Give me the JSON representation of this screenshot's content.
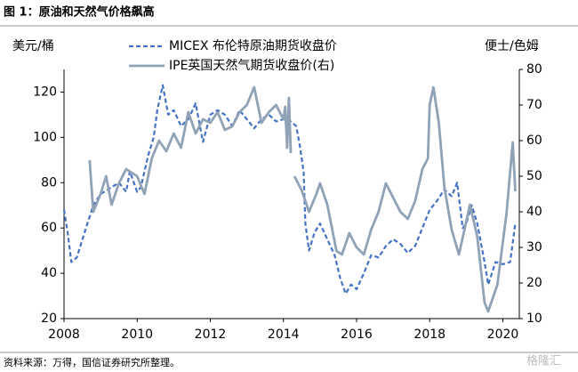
{
  "chart_data": {
    "type": "line",
    "title": "图 1：原油和天然气价格飙高",
    "y_label": "美元/桶",
    "y2_label": "便士/色姆",
    "source": "资料来源：万得，国信证券研究所整理。",
    "watermark": "格隆汇",
    "xlim": [
      2008,
      2020.45
    ],
    "xticks": [
      2008,
      2010,
      2012,
      2014,
      2016,
      2018,
      2020
    ],
    "ylim": [
      20,
      130
    ],
    "yticks": [
      20,
      40,
      60,
      80,
      100,
      120
    ],
    "y2lim": [
      10,
      80
    ],
    "y2ticks": [
      10,
      20,
      30,
      40,
      50,
      60,
      70,
      80
    ],
    "series": [
      {
        "name": "MICEX 布伦特原油期货收盘价",
        "color": "#4472c4",
        "style": "dashed",
        "x": [
          2008.0,
          2008.1,
          2008.2,
          2008.35,
          2008.6,
          2008.8,
          2009.0,
          2009.3,
          2009.5,
          2009.7,
          2009.8,
          2010.0,
          2010.1,
          2010.3,
          2010.45,
          2010.55,
          2010.7,
          2010.85,
          2011.0,
          2011.2,
          2011.4,
          2011.6,
          2011.8,
          2012.0,
          2012.2,
          2012.4,
          2012.6,
          2012.8,
          2013.0,
          2013.2,
          2013.4,
          2013.6,
          2013.8,
          2014.0,
          2014.2,
          2014.35,
          2014.45,
          2014.55,
          2014.6,
          2014.7,
          2014.85,
          2015.0,
          2015.2,
          2015.4,
          2015.55,
          2015.7,
          2015.85,
          2016.0,
          2016.2,
          2016.4,
          2016.6,
          2016.8,
          2017.0,
          2017.2,
          2017.4,
          2017.6,
          2017.8,
          2018.0,
          2018.2,
          2018.4,
          2018.6,
          2018.75,
          2018.9,
          2019.0,
          2019.15,
          2019.3,
          2019.5,
          2019.6,
          2019.8,
          2020.0,
          2020.2,
          2020.34
        ],
        "values": [
          68,
          58,
          45,
          47,
          60,
          70,
          75,
          78,
          80,
          76,
          85,
          76,
          78,
          92,
          100,
          112,
          123,
          110,
          112,
          105,
          108,
          115,
          98,
          110,
          112,
          110,
          105,
          112,
          108,
          104,
          108,
          110,
          107,
          108,
          107,
          105,
          96,
          85,
          62,
          50,
          58,
          62,
          55,
          48,
          38,
          31,
          35,
          33,
          40,
          48,
          47,
          52,
          55,
          53,
          49,
          52,
          60,
          68,
          72,
          77,
          74,
          80,
          60,
          62,
          70,
          62,
          45,
          35,
          45,
          44,
          45,
          62
        ]
      },
      {
        "name": "IPE英国天然气期货收盘价(右)",
        "color": "#8fa2b6",
        "style": "solid",
        "axis": "y2",
        "x": [
          2008.7,
          2008.8,
          2009.0,
          2009.15,
          2009.3,
          2009.5,
          2009.7,
          2010.0,
          2010.2,
          2010.4,
          2010.6,
          2010.8,
          2011.0,
          2011.2,
          2011.4,
          2011.6,
          2011.8,
          2012.0,
          2012.2,
          2012.4,
          2012.6,
          2012.8,
          2013.0,
          2013.2,
          2013.4,
          2013.6,
          2013.8,
          2014.0,
          2014.05,
          2014.1,
          2014.15,
          2014.2,
          2014.22,
          2014.3,
          2014.5,
          2014.7,
          2014.9,
          2015.0,
          2015.2,
          2015.45,
          2015.6,
          2015.8,
          2016.0,
          2016.2,
          2016.4,
          2016.6,
          2016.8,
          2017.0,
          2017.2,
          2017.4,
          2017.6,
          2017.8,
          2017.95,
          2018.0,
          2018.1,
          2018.25,
          2018.4,
          2018.6,
          2018.8,
          2019.1,
          2019.3,
          2019.5,
          2019.6,
          2019.85,
          2020.1,
          2020.27,
          2020.34
        ],
        "values": [
          54.5,
          40,
          45,
          50,
          42,
          48,
          52,
          50,
          45,
          55,
          60,
          57,
          62,
          58,
          68,
          62,
          66,
          65,
          68,
          63,
          64,
          68,
          70,
          75,
          65,
          68,
          70,
          66,
          69.5,
          58,
          72,
          56.5,
          null,
          50,
          46,
          40,
          45,
          48,
          42,
          29,
          28,
          34,
          30,
          28,
          35,
          40,
          48,
          44,
          40,
          38,
          43,
          52,
          55,
          70,
          75,
          65,
          47,
          35,
          28,
          42,
          33,
          14.5,
          12,
          19.5,
          39.5,
          59.5,
          45.75
        ]
      }
    ]
  }
}
